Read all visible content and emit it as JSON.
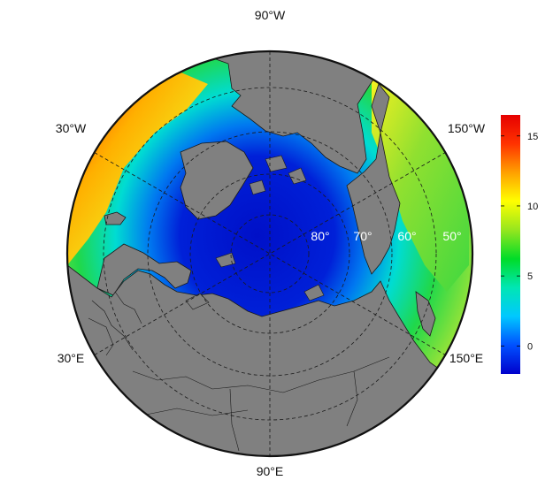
{
  "map": {
    "projection": "north-polar-stereographic",
    "longitude_labels": {
      "top": "90°W",
      "upper_left": "30°W",
      "upper_right": "150°W",
      "lower_left": "30°E",
      "lower_right": "150°E",
      "bottom": "90°E"
    },
    "latitude_labels": [
      "80°",
      "70°",
      "60°",
      "50°"
    ],
    "land_color": "#808080",
    "graticule": "dashed"
  },
  "colorbar": {
    "ticks": [
      "15",
      "10",
      "5",
      "0"
    ],
    "tick_values": [
      15,
      10,
      5,
      0
    ],
    "min": -2,
    "max": 16.5,
    "colors": [
      "#0000cc",
      "#0050ff",
      "#00c8ff",
      "#00e6b4",
      "#00dc28",
      "#96e61e",
      "#ffff00",
      "#ffa000",
      "#ff3200",
      "#e60000"
    ]
  }
}
